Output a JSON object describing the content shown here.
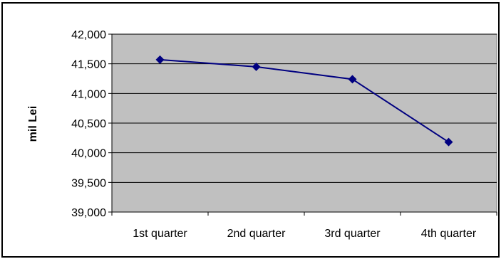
{
  "chart_data": {
    "type": "line",
    "title": "",
    "xlabel": "",
    "ylabel": "mil Lei",
    "categories": [
      "1st quarter",
      "2nd quarter",
      "3rd quarter",
      "4th quarter"
    ],
    "series": [
      {
        "values": [
          41570,
          41450,
          41240,
          40180
        ]
      }
    ],
    "ylim": [
      39000,
      42000
    ],
    "yticks": [
      39000,
      39500,
      40000,
      40500,
      41000,
      41500,
      42000
    ],
    "ytick_labels": [
      "39,000",
      "39,500",
      "40,000",
      "40,500",
      "41,000",
      "41,500",
      "42,000"
    ],
    "grid": true,
    "legend": "none",
    "colors": {
      "plot_background": "#c0c0c0",
      "series_line": "#000080",
      "gridline": "#000000",
      "frame": "#000000"
    }
  }
}
